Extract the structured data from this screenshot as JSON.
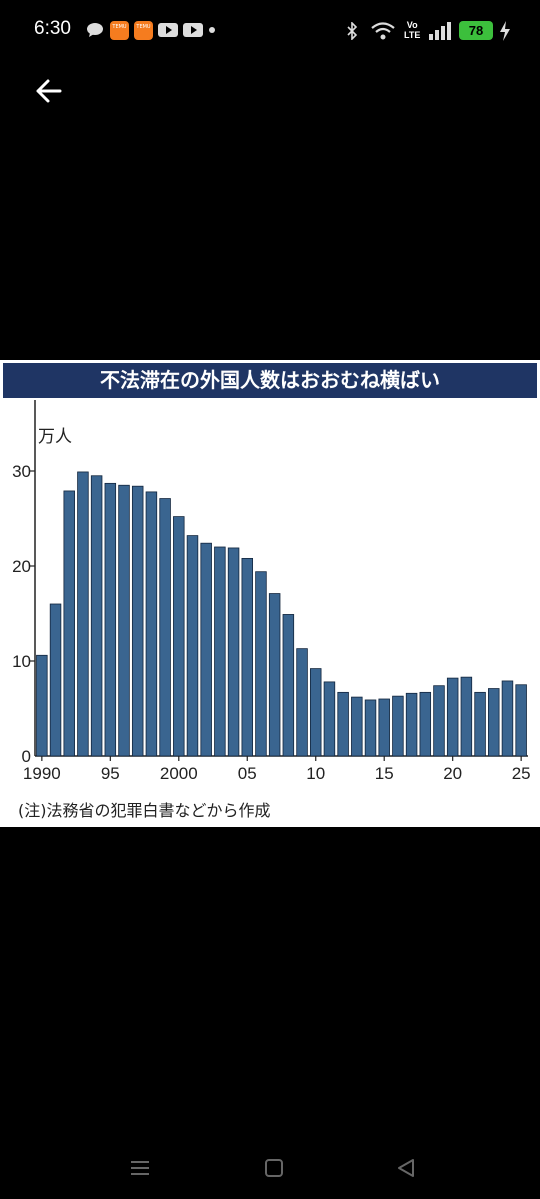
{
  "status_bar": {
    "time": "6:30",
    "app_icon_text": "TEMU",
    "lte_label": "LTE",
    "vo_label": "Vo",
    "battery": "78"
  },
  "nav": {
    "back_icon": "arrow-left-icon"
  },
  "chart_data": {
    "type": "bar",
    "title": "不法滞在の外国人数はおおむね横ばい",
    "ylabel": "万人",
    "ylim": [
      0,
      35
    ],
    "yticks": [
      0,
      10,
      20,
      30
    ],
    "x": [
      1990,
      1991,
      1992,
      1993,
      1994,
      1995,
      1996,
      1997,
      1998,
      1999,
      2000,
      2001,
      2002,
      2003,
      2004,
      2005,
      2006,
      2007,
      2008,
      2009,
      2010,
      2011,
      2012,
      2013,
      2014,
      2015,
      2016,
      2017,
      2018,
      2019,
      2020,
      2021,
      2022,
      2023,
      2024,
      2025
    ],
    "values": [
      10.6,
      16.0,
      27.9,
      29.9,
      29.5,
      28.7,
      28.5,
      28.4,
      27.8,
      27.1,
      25.2,
      23.2,
      22.4,
      22.0,
      21.9,
      20.8,
      19.4,
      17.1,
      14.9,
      11.3,
      9.2,
      7.8,
      6.7,
      6.2,
      5.9,
      6.0,
      6.3,
      6.6,
      6.7,
      7.4,
      8.2,
      8.3,
      6.7,
      7.1,
      7.9,
      7.5
    ],
    "xtick_years": [
      1990,
      1995,
      2000,
      2005,
      2010,
      2015,
      2020,
      2025
    ],
    "xtick_labels": [
      "1990",
      "95",
      "2000",
      "05",
      "10",
      "15",
      "20",
      "25"
    ],
    "bar_color": "#3a6590",
    "note": "(注)法務省の犯罪白書などから作成"
  }
}
